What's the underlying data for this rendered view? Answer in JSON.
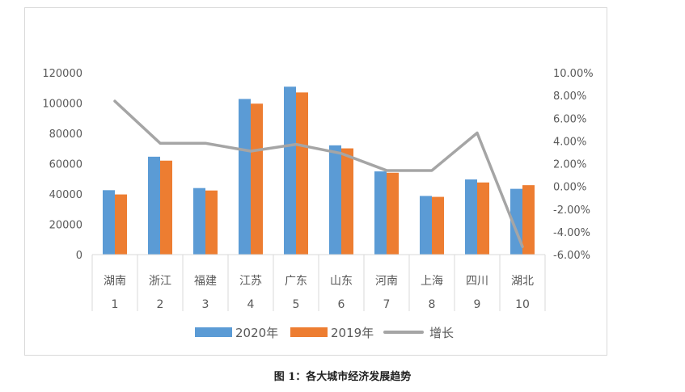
{
  "caption": "图 1：各大城市经济发展趋势",
  "chart_data": {
    "type": "bar",
    "categories": [
      "湖南",
      "浙江",
      "福建",
      "江苏",
      "广东",
      "山东",
      "河南",
      "上海",
      "四川",
      "湖北"
    ],
    "category_numbers": [
      "1",
      "2",
      "3",
      "4",
      "5",
      "6",
      "7",
      "8",
      "9",
      "10"
    ],
    "series": [
      {
        "name": "2020年",
        "type": "bar",
        "axis": "left",
        "color": "#5B9BD5",
        "values": [
          42500,
          64600,
          43900,
          102700,
          110800,
          72100,
          54900,
          38700,
          49600,
          43400
        ]
      },
      {
        "name": "2019年",
        "type": "bar",
        "axis": "left",
        "color": "#ED7D31",
        "values": [
          39700,
          62000,
          42300,
          99600,
          107000,
          70100,
          54000,
          38100,
          47600,
          45800
        ]
      },
      {
        "name": "增长",
        "type": "line",
        "axis": "right",
        "color": "#A5A5A5",
        "values": [
          7.5,
          3.8,
          3.8,
          3.1,
          3.7,
          2.9,
          1.4,
          1.4,
          4.7,
          -5.3
        ]
      }
    ],
    "y_left": {
      "ylim": [
        0,
        120000
      ],
      "ticks": [
        "0",
        "20000",
        "40000",
        "60000",
        "80000",
        "100000",
        "120000"
      ]
    },
    "y_right": {
      "ylim": [
        -6,
        10
      ],
      "ticks": [
        "-6.00%",
        "-4.00%",
        "-2.00%",
        "0.00%",
        "2.00%",
        "4.00%",
        "6.00%",
        "8.00%",
        "10.00%"
      ]
    },
    "grid": false,
    "legend_position": "bottom"
  }
}
